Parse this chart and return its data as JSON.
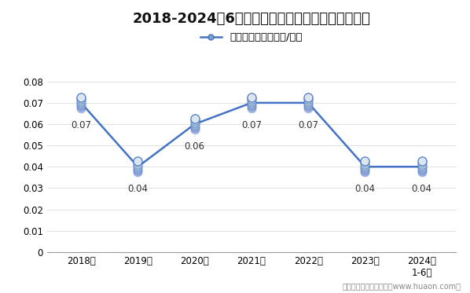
{
  "title": "2018-2024年6月大连商品交易所豆粕期权成交均价",
  "legend_label": "期权成交均价（万元/手）",
  "x_labels": [
    "2018年",
    "2019年",
    "2020年",
    "2021年",
    "2022年",
    "2023年",
    "2024年\n1-6月"
  ],
  "y_values": [
    0.07,
    0.04,
    0.06,
    0.07,
    0.07,
    0.04,
    0.04
  ],
  "data_labels": [
    "0.07",
    "0.04",
    "0.06",
    "0.07",
    "0.07",
    "0.04",
    "0.04"
  ],
  "data_label_offsets": [
    -0.008,
    -0.008,
    -0.008,
    -0.008,
    -0.008,
    -0.008,
    -0.008
  ],
  "ylim": [
    0,
    0.088
  ],
  "yticks": [
    0,
    0.01,
    0.02,
    0.03,
    0.04,
    0.05,
    0.06,
    0.07,
    0.08
  ],
  "line_color": "#4472C4",
  "marker_face_top": "#ccd9ee",
  "marker_face_mid": "#7aa2d0",
  "marker_edge": "#4472C4",
  "background_color": "#ffffff",
  "footer_text": "制图：华经产业研究院（www.huaon.com）",
  "title_fontsize": 13,
  "label_fontsize": 8.5,
  "tick_fontsize": 8.5,
  "legend_fontsize": 9.5,
  "footer_fontsize": 7
}
